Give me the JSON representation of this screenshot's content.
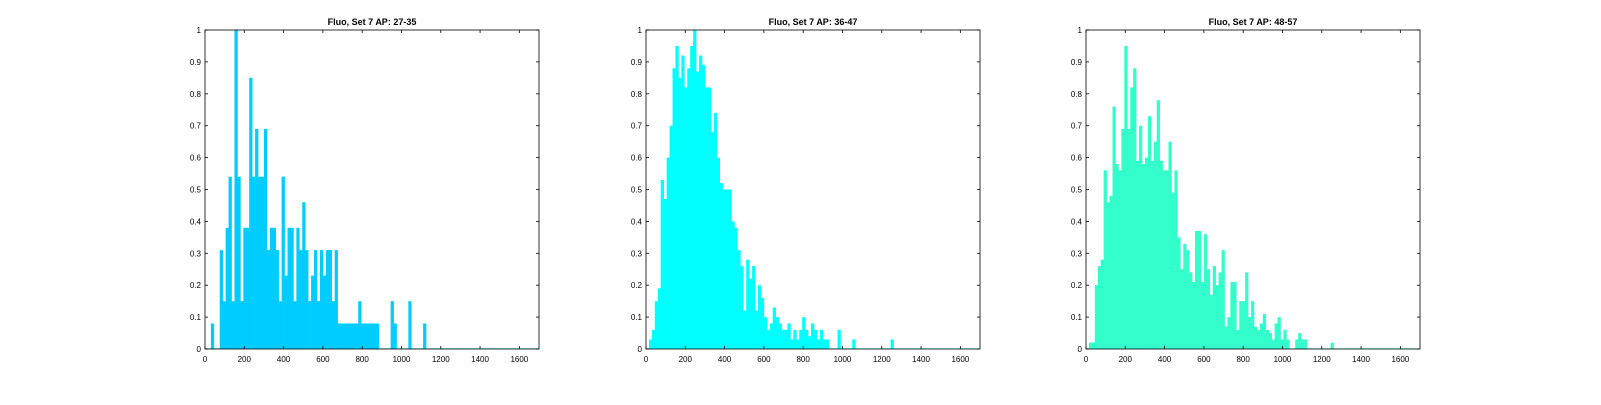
{
  "chart_data": [
    {
      "type": "bar",
      "title": "Fluo, Set 7 AP: 27-35",
      "xlim": [
        0,
        1700
      ],
      "ylim": [
        0,
        1
      ],
      "xticks": [
        "0",
        "200",
        "400",
        "600",
        "800",
        "1000",
        "1200",
        "1400",
        "1600"
      ],
      "yticks": [
        "0",
        "0.1",
        "0.2",
        "0.3",
        "0.4",
        "0.5",
        "0.6",
        "0.7",
        "0.8",
        "0.9",
        "1"
      ],
      "grid": false,
      "color": "#00ccff",
      "bin_width": 15,
      "bin_start": 0,
      "values": [
        0,
        0,
        0.08,
        0,
        0,
        0.31,
        0.15,
        0.38,
        0.54,
        0.15,
        1,
        0.54,
        0.15,
        0.38,
        0.38,
        0.85,
        0.54,
        0.69,
        0.54,
        0.54,
        0.69,
        0.31,
        0.38,
        0.38,
        0.31,
        0.15,
        0.54,
        0.23,
        0.38,
        0.38,
        0.15,
        0.38,
        0.31,
        0.46,
        0.31,
        0.15,
        0.23,
        0.31,
        0.15,
        0.31,
        0.23,
        0.31,
        0.31,
        0.15,
        0.31,
        0.08,
        0.08,
        0.08,
        0.08,
        0.08,
        0.08,
        0.08,
        0.15,
        0.08,
        0.08,
        0.08,
        0.08,
        0.08,
        0.08,
        0,
        0,
        0,
        0,
        0.15,
        0.08,
        0,
        0,
        0,
        0,
        0.15,
        0,
        0,
        0,
        0,
        0.08,
        0,
        0,
        0,
        0,
        0,
        0,
        0,
        0,
        0,
        0,
        0,
        0,
        0,
        0,
        0,
        0,
        0,
        0,
        0,
        0,
        0,
        0,
        0,
        0,
        0,
        0,
        0,
        0,
        0,
        0,
        0,
        0,
        0,
        0,
        0,
        0,
        0,
        0
      ]
    },
    {
      "type": "bar",
      "title": "Fluo, Set 7 AP: 36-47",
      "xlim": [
        0,
        1700
      ],
      "ylim": [
        0,
        1
      ],
      "xticks": [
        "0",
        "200",
        "400",
        "600",
        "800",
        "1000",
        "1200",
        "1400",
        "1600"
      ],
      "yticks": [
        "0",
        "0.1",
        "0.2",
        "0.3",
        "0.4",
        "0.5",
        "0.6",
        "0.7",
        "0.8",
        "0.9",
        "1"
      ],
      "grid": false,
      "color": "#00ffff",
      "bin_width": 15,
      "bin_start": 0,
      "values": [
        0,
        0.03,
        0.06,
        0.15,
        0.19,
        0.53,
        0.47,
        0.6,
        0.7,
        0.88,
        0.95,
        0.85,
        0.92,
        0.82,
        0.88,
        0.95,
        1,
        0.87,
        0.92,
        0.89,
        0.82,
        0.82,
        0.68,
        0.74,
        0.6,
        0.52,
        0.5,
        0.5,
        0.5,
        0.4,
        0.38,
        0.31,
        0.26,
        0.12,
        0.28,
        0.22,
        0.26,
        0.12,
        0.2,
        0.16,
        0.1,
        0.06,
        0.08,
        0.13,
        0.1,
        0.08,
        0.06,
        0.06,
        0.08,
        0.03,
        0.06,
        0.03,
        0.06,
        0.1,
        0.06,
        0.04,
        0.08,
        0.06,
        0.03,
        0.06,
        0.03,
        0.03,
        0,
        0,
        0,
        0.06,
        0,
        0,
        0,
        0,
        0.03,
        0,
        0,
        0,
        0,
        0,
        0,
        0,
        0,
        0,
        0,
        0,
        0,
        0.03,
        0,
        0,
        0,
        0,
        0,
        0,
        0,
        0,
        0,
        0,
        0,
        0,
        0,
        0,
        0,
        0,
        0,
        0,
        0,
        0,
        0,
        0,
        0,
        0,
        0,
        0,
        0,
        0,
        0
      ]
    },
    {
      "type": "bar",
      "title": "Fluo, Set 7 AP: 48-57",
      "xlim": [
        0,
        1700
      ],
      "ylim": [
        0,
        1
      ],
      "xticks": [
        "0",
        "200",
        "400",
        "600",
        "800",
        "1000",
        "1200",
        "1400",
        "1600"
      ],
      "yticks": [
        "0",
        "0.1",
        "0.2",
        "0.3",
        "0.4",
        "0.5",
        "0.6",
        "0.7",
        "0.8",
        "0.9",
        "1"
      ],
      "grid": false,
      "color": "#33ffcc",
      "bin_width": 15,
      "bin_start": 0,
      "values": [
        0,
        0.02,
        0.02,
        0.2,
        0.26,
        0.28,
        0.56,
        0.46,
        0.48,
        0.76,
        0.58,
        0.56,
        0.69,
        0.95,
        0.69,
        0.82,
        0.88,
        0.59,
        0.7,
        0.58,
        0.6,
        0.73,
        0.59,
        0.65,
        0.78,
        0.59,
        0.56,
        0.56,
        0.65,
        0.49,
        0.56,
        0.35,
        0.25,
        0.33,
        0.31,
        0.24,
        0.21,
        0.37,
        0.37,
        0.21,
        0.36,
        0.25,
        0.17,
        0.26,
        0.2,
        0.24,
        0.31,
        0.07,
        0.1,
        0.21,
        0.21,
        0.06,
        0.15,
        0.15,
        0.24,
        0.1,
        0.15,
        0.07,
        0.06,
        0.08,
        0.11,
        0.06,
        0.05,
        0.03,
        0.08,
        0.1,
        0.03,
        0.06,
        0.03,
        0,
        0,
        0.03,
        0.05,
        0.03,
        0.03,
        0,
        0,
        0,
        0,
        0,
        0,
        0,
        0,
        0.02,
        0,
        0,
        0,
        0,
        0,
        0,
        0,
        0,
        0,
        0,
        0,
        0,
        0,
        0,
        0,
        0,
        0,
        0,
        0,
        0,
        0,
        0,
        0,
        0,
        0,
        0,
        0,
        0,
        0
      ]
    }
  ]
}
